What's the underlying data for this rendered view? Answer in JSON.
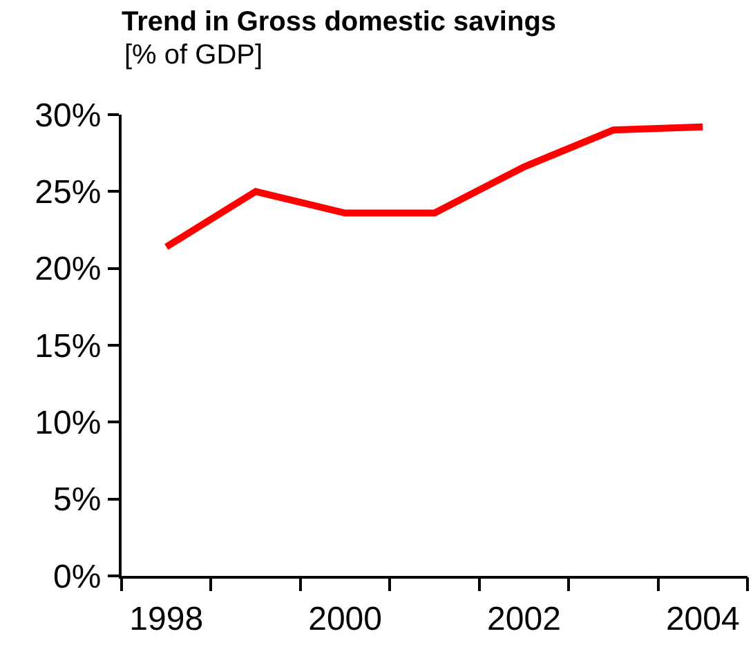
{
  "chart_data": {
    "type": "line",
    "title": "Trend in Gross domestic savings",
    "subtitle": "[% of GDP]",
    "categories": [
      "1998",
      null,
      "2000",
      null,
      "2002",
      null,
      "2004"
    ],
    "series": [
      {
        "color": "#ff0000",
        "values": [
          21.4,
          25.0,
          23.6,
          23.6,
          26.6,
          29.0,
          29.2
        ]
      }
    ],
    "ylim": [
      0,
      30
    ],
    "yticks": [
      {
        "value": 0,
        "label": "0%"
      },
      {
        "value": 5,
        "label": "5%"
      },
      {
        "value": 10,
        "label": "10%"
      },
      {
        "value": 15,
        "label": "15%"
      },
      {
        "value": 20,
        "label": "20%"
      },
      {
        "value": 25,
        "label": "25%"
      },
      {
        "value": 30,
        "label": "30%"
      }
    ],
    "marker": "none",
    "line_style": "solid"
  }
}
